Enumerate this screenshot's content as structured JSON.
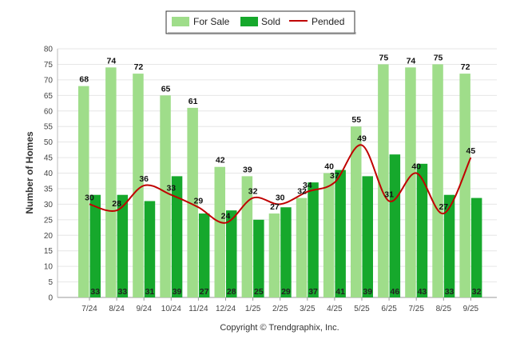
{
  "chart_data": {
    "type": "bar",
    "categories": [
      "7/24",
      "8/24",
      "9/24",
      "10/24",
      "11/24",
      "12/24",
      "1/25",
      "2/25",
      "3/25",
      "4/25",
      "5/25",
      "6/25",
      "7/25",
      "8/25",
      "9/25"
    ],
    "series": [
      {
        "name": "For Sale",
        "type": "bar",
        "color": "#9fdd8a",
        "values": [
          68,
          74,
          72,
          65,
          61,
          42,
          39,
          27,
          32,
          40,
          55,
          75,
          74,
          75,
          72
        ]
      },
      {
        "name": "Sold",
        "type": "bar",
        "color": "#16a82c",
        "values": [
          33,
          33,
          31,
          39,
          27,
          28,
          25,
          29,
          37,
          41,
          39,
          46,
          43,
          33,
          32
        ]
      },
      {
        "name": "Pended",
        "type": "line",
        "color": "#c00000",
        "values": [
          30,
          28,
          36,
          33,
          29,
          24,
          32,
          30,
          34,
          37,
          49,
          31,
          40,
          27,
          45
        ]
      }
    ],
    "ylabel": "Number of Homes",
    "ylim": [
      0,
      80
    ],
    "yticks": [
      0,
      5,
      10,
      15,
      20,
      25,
      30,
      35,
      40,
      45,
      50,
      55,
      60,
      65,
      70,
      75,
      80
    ],
    "grid": true,
    "legend_position": "top-center"
  },
  "copyright": "Copyright © Trendgraphix, Inc."
}
